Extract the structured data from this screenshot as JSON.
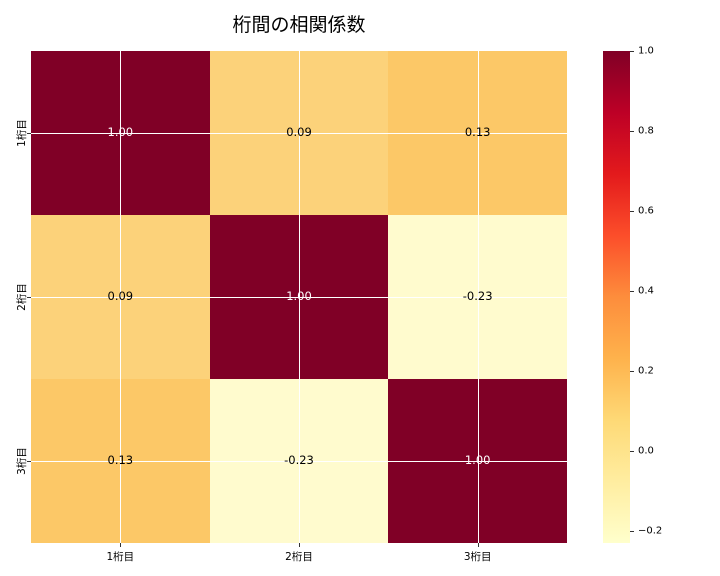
{
  "title": "桁間の相関係数",
  "colors": {
    "background": "#ffffff",
    "gridline": "#ffffff",
    "tick": "#333333",
    "text": "#000000"
  },
  "chart_data": {
    "type": "heatmap",
    "title": "桁間の相関係数",
    "x_categories": [
      "1桁目",
      "2桁目",
      "3桁目"
    ],
    "y_categories": [
      "1桁目",
      "2桁目",
      "3桁目"
    ],
    "values": [
      [
        1.0,
        0.09,
        0.13
      ],
      [
        0.09,
        1.0,
        -0.23
      ],
      [
        0.13,
        -0.23,
        1.0
      ]
    ],
    "cell_labels": [
      [
        "1.00",
        "0.09",
        "0.13"
      ],
      [
        "0.09",
        "1.00",
        "-0.23"
      ],
      [
        "0.13",
        "-0.23",
        "1.00"
      ]
    ],
    "cell_colors": [
      [
        "#800026",
        "#fcd27a",
        "#fcc867"
      ],
      [
        "#fcd27a",
        "#800026",
        "#fffbce"
      ],
      [
        "#fcc867",
        "#fffbce",
        "#800026"
      ]
    ],
    "cell_text_colors": [
      [
        "#ffffff",
        "#000000",
        "#000000"
      ],
      [
        "#000000",
        "#ffffff",
        "#000000"
      ],
      [
        "#000000",
        "#000000",
        "#ffffff"
      ]
    ],
    "colormap": "YlOrRd",
    "vmin": -0.23,
    "vmax": 1.0,
    "grid": true,
    "grid_positions_pct": [
      16.6667,
      50,
      83.3333
    ],
    "colorbar": {
      "position": "right",
      "tick_labels": [
        "1.0",
        "0.8",
        "0.6",
        "0.4",
        "0.2",
        "0.0",
        "−0.2"
      ],
      "tick_values": [
        1.0,
        0.8,
        0.6,
        0.4,
        0.2,
        0.0,
        -0.2
      ],
      "gradient_stops": [
        {
          "pos": 0,
          "color": "#800026"
        },
        {
          "pos": 12.5,
          "color": "#bd0026"
        },
        {
          "pos": 25,
          "color": "#e31a1c"
        },
        {
          "pos": 37.5,
          "color": "#fc4e2a"
        },
        {
          "pos": 50,
          "color": "#fd8d3c"
        },
        {
          "pos": 62.5,
          "color": "#feb24c"
        },
        {
          "pos": 75,
          "color": "#fed976"
        },
        {
          "pos": 87.5,
          "color": "#ffeda0"
        },
        {
          "pos": 100,
          "color": "#ffffcc"
        }
      ]
    }
  }
}
